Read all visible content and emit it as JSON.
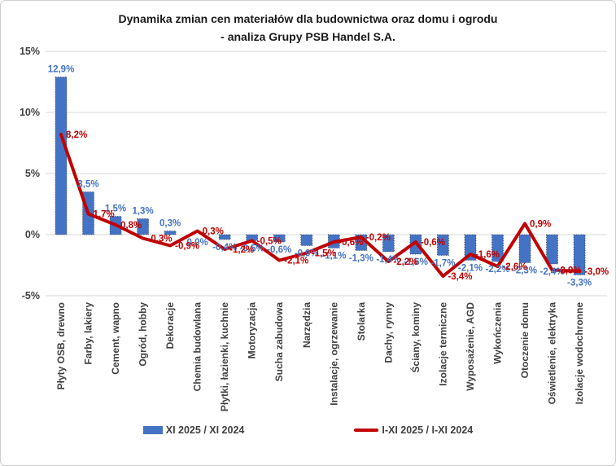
{
  "title": {
    "line1": "Dynamika zmian cen materiałów dla budownictwa oraz domu i ogrodu",
    "line2": "- analiza Grupy PSB Handel S.A."
  },
  "legend": [
    {
      "label": "XI 2025 / XI 2024",
      "swatch": "bar-swatch",
      "color": "#4472C4"
    },
    {
      "label": "I-XI 2025 / I-XI 2024",
      "swatch": "line-swatch",
      "color": "#C00000"
    }
  ],
  "colors": {
    "bar": "#4472C4",
    "bar_label": "#4472C4",
    "line": "#C00000",
    "line_label": "#C00000",
    "grid": "#d9d9d9",
    "axis_text": "#404040",
    "bar_border": "#404040"
  },
  "chart_data": {
    "type": "bar",
    "subtype": "bar-with-line-overlay",
    "title": "Dynamika zmian cen materiałów dla budownictwa oraz domu i ogrodu - analiza Grupy PSB Handel S.A.",
    "categories": [
      "Płyty OSB, drewno",
      "Farby, lakiery",
      "Cement, wapno",
      "Ogród, hobby",
      "Dekoracje",
      "Chemia budowlana",
      "Płytki, łazienki, kuchnie",
      "Motoryzacja",
      "Sucha zabudowa",
      "Narzędzia",
      "Instalacje, ogrzewanie",
      "Stolarka",
      "Dachy, rynny",
      "Ściany, kominy",
      "Izolacje termiczne",
      "Wyposażenie, AGD",
      "Wykończenia",
      "Otoczenie domu",
      "Oświetlenie, elektryka",
      "Izolacje wodochronne"
    ],
    "series": [
      {
        "name": "XI 2025 / XI 2024",
        "type": "bar",
        "values": [
          12.9,
          3.5,
          1.5,
          1.3,
          0.3,
          0.0,
          -0.4,
          -0.5,
          -0.6,
          -0.9,
          -1.1,
          -1.3,
          -1.4,
          -1.6,
          -1.7,
          -2.1,
          -2.2,
          -2.3,
          -2.4,
          -3.3
        ]
      },
      {
        "name": "I-XI 2025 / I-XI 2024",
        "type": "line",
        "values": [
          8.2,
          1.7,
          0.8,
          -0.3,
          -0.9,
          0.3,
          -1.2,
          -0.5,
          -2.1,
          -1.5,
          -0.6,
          -0.2,
          -2.2,
          -0.6,
          -3.4,
          -1.6,
          -2.6,
          0.9,
          -2.9,
          -3.0
        ]
      }
    ],
    "xlabel": "",
    "ylabel": "",
    "yticks_percent": [
      15,
      10,
      5,
      0,
      -5
    ],
    "ytick_labels": [
      "15%",
      "10%",
      "5%",
      "0%",
      "-5%"
    ],
    "ylim": [
      -5.5,
      15.5
    ],
    "grid": true,
    "legend_position": "bottom",
    "value_format": "comma-decimal-percent-1dp"
  }
}
